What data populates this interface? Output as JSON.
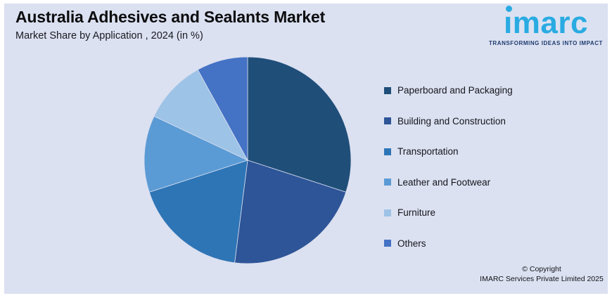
{
  "background_color": "#dbe1f1",
  "chart_data": {
    "type": "pie",
    "title": "Australia Adhesives and Sealants Market",
    "subtitle": "Market Share by Application , 2024 (in %)",
    "unit": "%",
    "categories": [
      "Paperboard and Packaging",
      "Building and Construction",
      "Transportation",
      "Leather and Footwear",
      "Furniture",
      "Others"
    ],
    "values": [
      30,
      22,
      18,
      12,
      10,
      8
    ],
    "colors": [
      "#1F4E79",
      "#2E5597",
      "#2E75B6",
      "#5B9BD5",
      "#9DC3E6",
      "#4472C4"
    ],
    "legend_position": "right",
    "start_angle_deg": 0,
    "direction": "clockwise",
    "data_labels": false
  },
  "logo": {
    "text": "imarc",
    "tagline": "TRANSFORMING IDEAS INTO IMPACT",
    "color": "#29ABE2",
    "tagline_color": "#1E3A6E"
  },
  "footer": {
    "copyright_line1": "© Copyright",
    "copyright_line2": "IMARC Services Private Limited 2025"
  }
}
